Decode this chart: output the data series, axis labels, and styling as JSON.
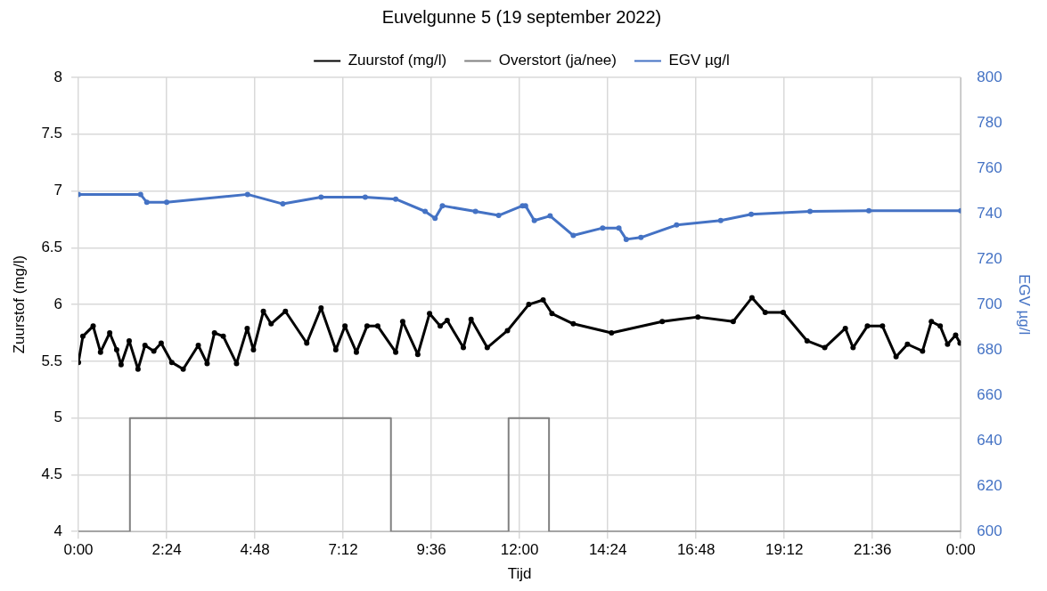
{
  "chart_data": {
    "type": "line",
    "title": "Euvelgunne 5 (19 september 2022)",
    "xlabel": "Tijd",
    "ylabel": "Zuurstof (mg/l)",
    "y2label": "EGV µg/l",
    "xlim": [
      0,
      24
    ],
    "xticks": [
      {
        "value": 0,
        "label": "0:00"
      },
      {
        "value": 2.4,
        "label": "2:24"
      },
      {
        "value": 4.8,
        "label": "4:48"
      },
      {
        "value": 7.2,
        "label": "7:12"
      },
      {
        "value": 9.6,
        "label": "9:36"
      },
      {
        "value": 12,
        "label": "12:00"
      },
      {
        "value": 14.4,
        "label": "14:24"
      },
      {
        "value": 16.8,
        "label": "16:48"
      },
      {
        "value": 19.2,
        "label": "19:12"
      },
      {
        "value": 21.6,
        "label": "21:36"
      },
      {
        "value": 24,
        "label": "0:00"
      }
    ],
    "ylim": [
      4,
      8
    ],
    "yticks": [
      4,
      4.5,
      5,
      5.5,
      6,
      6.5,
      7,
      7.5,
      8
    ],
    "y2lim": [
      600,
      800
    ],
    "y2ticks": [
      600,
      620,
      640,
      660,
      680,
      700,
      720,
      740,
      760,
      780,
      800
    ],
    "grid": true,
    "legend": "top",
    "series": [
      {
        "name": "Zuurstof (mg/l)",
        "color": "#000000",
        "marker": "circle",
        "x": [
          0,
          0.12,
          0.4,
          0.6,
          0.85,
          1.04,
          1.16,
          1.38,
          1.62,
          1.81,
          2.05,
          2.25,
          2.54,
          2.85,
          3.26,
          3.5,
          3.7,
          3.94,
          4.3,
          4.59,
          4.76,
          5.03,
          5.24,
          5.63,
          6.21,
          6.6,
          7.0,
          7.25,
          7.56,
          7.85,
          8.14,
          8.63,
          8.82,
          9.23,
          9.55,
          9.84,
          10.03,
          10.47,
          10.68,
          11.12,
          11.67,
          12.25,
          12.64,
          12.88,
          13.46,
          14.5,
          15.88,
          16.85,
          17.81,
          18.32,
          18.68,
          19.17,
          19.82,
          20.3,
          20.86,
          21.07,
          21.46,
          21.87,
          22.24,
          22.55,
          22.96,
          23.2,
          23.44,
          23.64,
          23.86,
          23.98
        ],
        "values": [
          5.49,
          5.72,
          5.81,
          5.58,
          5.75,
          5.6,
          5.47,
          5.68,
          5.43,
          5.64,
          5.59,
          5.66,
          5.49,
          5.43,
          5.64,
          5.48,
          5.75,
          5.72,
          5.48,
          5.79,
          5.6,
          5.94,
          5.83,
          5.94,
          5.66,
          5.97,
          5.6,
          5.81,
          5.58,
          5.81,
          5.81,
          5.58,
          5.85,
          5.56,
          5.92,
          5.81,
          5.86,
          5.62,
          5.87,
          5.62,
          5.77,
          6.0,
          6.04,
          5.92,
          5.83,
          5.75,
          5.85,
          5.89,
          5.85,
          6.06,
          5.93,
          5.93,
          5.68,
          5.62,
          5.79,
          5.62,
          5.81,
          5.81,
          5.54,
          5.65,
          5.59,
          5.85,
          5.81,
          5.65,
          5.73,
          5.66
        ]
      },
      {
        "name": "Overstort (ja/nee)",
        "color": "#808080",
        "marker": "none",
        "x": [
          0,
          1.4,
          1.4,
          8.5,
          8.5,
          11.7,
          11.7,
          12.8,
          12.8,
          24
        ],
        "values": [
          4,
          4,
          5,
          5,
          4,
          4,
          5,
          5,
          4,
          4
        ]
      },
      {
        "name": "EGV µg/l",
        "color": "#4472c4",
        "marker": "circle",
        "axis": "y2",
        "x": [
          0,
          1.69,
          1.86,
          2.4,
          4.6,
          5.56,
          6.6,
          7.8,
          8.63,
          9.43,
          9.7,
          9.9,
          10.8,
          11.43,
          12.08,
          12.16,
          12.4,
          12.83,
          13.46,
          14.26,
          14.7,
          14.9,
          15.3,
          16.27,
          17.47,
          18.3,
          19.9,
          21.5,
          24.0
        ],
        "values": [
          748.5,
          748.5,
          745,
          745,
          748.5,
          744.3,
          747.3,
          747.3,
          746.4,
          741,
          738,
          743.5,
          741,
          739.2,
          743.5,
          743.5,
          737,
          739,
          730.4,
          733.7,
          733.7,
          728.7,
          729.5,
          735,
          737,
          739.7,
          741,
          741.3,
          741.3
        ]
      }
    ]
  }
}
